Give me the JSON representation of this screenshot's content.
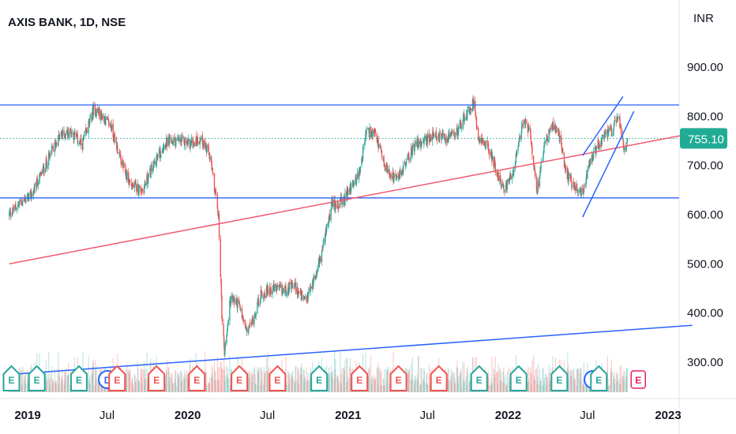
{
  "header": {
    "title": "AXIS BANK, 1D, NSE"
  },
  "colors": {
    "up": "#26a69a",
    "down": "#ef5350",
    "blue_line": "#2962ff",
    "red_line": "#f05a6e",
    "price_tag": "#22ab94",
    "earnings_green": "#26a69a",
    "earnings_red": "#ef5350",
    "dividend_blue": "#2962ff",
    "earnings_future": "#e91e63"
  },
  "chart_data": {
    "type": "candlestick",
    "title": "AXIS BANK, 1D, NSE",
    "currency": "INR",
    "last_price": "755.10",
    "y_axis": {
      "ticks": [
        {
          "value": 300,
          "label": "300.00"
        },
        {
          "value": 400,
          "label": "400.00"
        },
        {
          "value": 500,
          "label": "500.00"
        },
        {
          "value": 600,
          "label": "600.00"
        },
        {
          "value": 700,
          "label": "700.00"
        },
        {
          "value": 800,
          "label": "800.00"
        },
        {
          "value": 900,
          "label": "900.00"
        }
      ],
      "range": [
        215,
        985
      ]
    },
    "x_axis": {
      "range": [
        "2019-01-01",
        "2023-01-01"
      ],
      "ticks": [
        {
          "date": "2019-01-01",
          "label": "2019",
          "bold": true
        },
        {
          "date": "2019-07-01",
          "label": "Jul",
          "bold": false
        },
        {
          "date": "2020-01-01",
          "label": "2020",
          "bold": true
        },
        {
          "date": "2020-07-01",
          "label": "Jul",
          "bold": false
        },
        {
          "date": "2021-01-01",
          "label": "2021",
          "bold": true
        },
        {
          "date": "2021-07-01",
          "label": "Jul",
          "bold": false
        },
        {
          "date": "2022-01-01",
          "label": "2022",
          "bold": true
        },
        {
          "date": "2022-07-01",
          "label": "Jul",
          "bold": false
        },
        {
          "date": "2023-01-01",
          "label": "2023",
          "bold": true
        }
      ]
    },
    "price_path": [
      [
        "2018-11-20",
        600
      ],
      [
        "2018-12-15",
        625
      ],
      [
        "2019-01-10",
        640
      ],
      [
        "2019-02-10",
        700
      ],
      [
        "2019-03-15",
        760
      ],
      [
        "2019-04-10",
        770
      ],
      [
        "2019-05-05",
        740
      ],
      [
        "2019-06-01",
        815
      ],
      [
        "2019-06-20",
        800
      ],
      [
        "2019-07-10",
        780
      ],
      [
        "2019-08-05",
        700
      ],
      [
        "2019-08-25",
        660
      ],
      [
        "2019-09-20",
        650
      ],
      [
        "2019-10-15",
        700
      ],
      [
        "2019-11-10",
        745
      ],
      [
        "2019-12-10",
        750
      ],
      [
        "2020-01-10",
        745
      ],
      [
        "2020-02-01",
        755
      ],
      [
        "2020-02-20",
        720
      ],
      [
        "2020-03-05",
        640
      ],
      [
        "2020-03-12",
        590
      ],
      [
        "2020-03-19",
        400
      ],
      [
        "2020-03-25",
        320
      ],
      [
        "2020-04-08",
        430
      ],
      [
        "2020-04-25",
        420
      ],
      [
        "2020-05-15",
        360
      ],
      [
        "2020-05-28",
        385
      ],
      [
        "2020-06-15",
        435
      ],
      [
        "2020-07-10",
        450
      ],
      [
        "2020-08-05",
        445
      ],
      [
        "2020-09-01",
        455
      ],
      [
        "2020-09-25",
        420
      ],
      [
        "2020-10-10",
        455
      ],
      [
        "2020-11-01",
        520
      ],
      [
        "2020-11-25",
        620
      ],
      [
        "2020-12-20",
        625
      ],
      [
        "2021-01-10",
        660
      ],
      [
        "2021-01-25",
        680
      ],
      [
        "2021-02-12",
        770
      ],
      [
        "2021-03-05",
        760
      ],
      [
        "2021-03-25",
        700
      ],
      [
        "2021-04-20",
        670
      ],
      [
        "2021-05-10",
        700
      ],
      [
        "2021-06-01",
        740
      ],
      [
        "2021-06-20",
        750
      ],
      [
        "2021-07-15",
        760
      ],
      [
        "2021-08-10",
        755
      ],
      [
        "2021-09-01",
        760
      ],
      [
        "2021-09-25",
        800
      ],
      [
        "2021-10-15",
        830
      ],
      [
        "2021-10-25",
        760
      ],
      [
        "2021-11-15",
        740
      ],
      [
        "2021-12-05",
        690
      ],
      [
        "2021-12-25",
        650
      ],
      [
        "2022-01-15",
        695
      ],
      [
        "2022-02-05",
        790
      ],
      [
        "2022-02-20",
        770
      ],
      [
        "2022-03-08",
        650
      ],
      [
        "2022-03-25",
        740
      ],
      [
        "2022-04-10",
        780
      ],
      [
        "2022-04-25",
        770
      ],
      [
        "2022-05-15",
        680
      ],
      [
        "2022-06-01",
        660
      ],
      [
        "2022-06-20",
        640
      ],
      [
        "2022-07-05",
        700
      ],
      [
        "2022-07-25",
        740
      ],
      [
        "2022-08-10",
        760
      ],
      [
        "2022-08-25",
        770
      ],
      [
        "2022-09-10",
        800
      ],
      [
        "2022-09-15",
        770
      ],
      [
        "2022-09-22",
        730
      ],
      [
        "2022-09-30",
        755.1
      ]
    ],
    "horizontal_levels": [
      {
        "value": 823,
        "color": "#2962ff"
      },
      {
        "value": 634,
        "color": "#2962ff"
      },
      {
        "value": 755.1,
        "color": "#22ab94",
        "style": "dotted"
      }
    ],
    "trend_lines": [
      {
        "from": [
          "2018-11-20",
          500
        ],
        "to": [
          "2023-02-25",
          765
        ],
        "color": "#f05a6e"
      },
      {
        "from": [
          "2018-11-20",
          275
        ],
        "to": [
          "2023-02-25",
          375
        ],
        "color": "#2962ff"
      },
      {
        "from": [
          "2022-06-20",
          595
        ],
        "to": [
          "2022-10-15",
          810
        ],
        "color": "#2962ff"
      },
      {
        "from": [
          "2022-06-20",
          720
        ],
        "to": [
          "2022-09-20",
          840
        ],
        "color": "#2962ff"
      }
    ],
    "events": [
      {
        "date": "2018-11-25",
        "label": "E",
        "kind": "earnings-green"
      },
      {
        "date": "2019-01-22",
        "label": "E",
        "kind": "earnings-green"
      },
      {
        "date": "2019-04-28",
        "label": "E",
        "kind": "earnings-green"
      },
      {
        "date": "2019-07-02",
        "label": "D",
        "kind": "dividend"
      },
      {
        "date": "2019-07-24",
        "label": "E",
        "kind": "earnings-red"
      },
      {
        "date": "2019-10-22",
        "label": "E",
        "kind": "earnings-red"
      },
      {
        "date": "2020-01-22",
        "label": "E",
        "kind": "earnings-red"
      },
      {
        "date": "2020-04-28",
        "label": "E",
        "kind": "earnings-red"
      },
      {
        "date": "2020-07-24",
        "label": "E",
        "kind": "earnings-red"
      },
      {
        "date": "2020-10-27",
        "label": "E",
        "kind": "earnings-green"
      },
      {
        "date": "2021-01-27",
        "label": "E",
        "kind": "earnings-red"
      },
      {
        "date": "2021-04-26",
        "label": "E",
        "kind": "earnings-red"
      },
      {
        "date": "2021-07-27",
        "label": "E",
        "kind": "earnings-red"
      },
      {
        "date": "2021-10-27",
        "label": "E",
        "kind": "earnings-green"
      },
      {
        "date": "2022-01-25",
        "label": "E",
        "kind": "earnings-green"
      },
      {
        "date": "2022-04-28",
        "label": "E",
        "kind": "earnings-green"
      },
      {
        "date": "2022-07-14",
        "label": "D",
        "kind": "dividend"
      },
      {
        "date": "2022-07-27",
        "label": "E",
        "kind": "earnings-green"
      },
      {
        "date": "2022-10-25",
        "label": "E",
        "kind": "earnings-future"
      }
    ]
  }
}
